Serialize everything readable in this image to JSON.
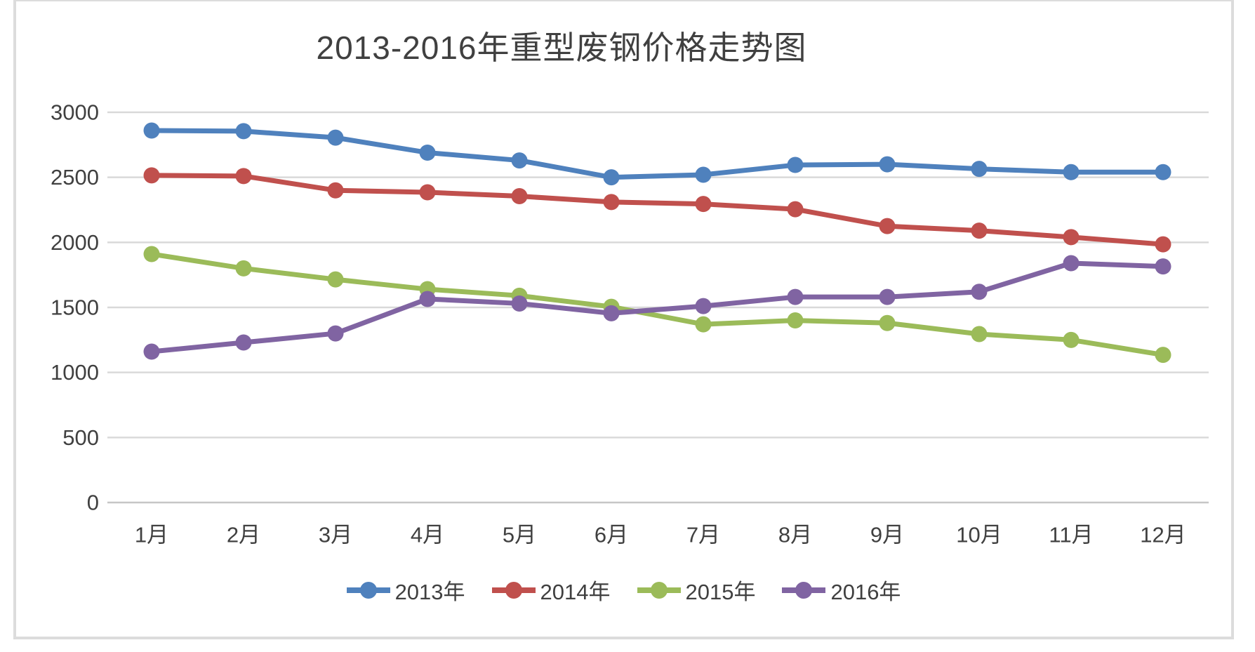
{
  "chart_data": {
    "type": "line",
    "title": "2013-2016年重型废钢价格走势图",
    "xlabel": "",
    "ylabel": "",
    "categories": [
      "1月",
      "2月",
      "3月",
      "4月",
      "5月",
      "6月",
      "7月",
      "8月",
      "9月",
      "10月",
      "11月",
      "12月"
    ],
    "series": [
      {
        "name": "2013年",
        "color": "#4F81BD",
        "values": [
          2860,
          2855,
          2805,
          2690,
          2630,
          2500,
          2520,
          2595,
          2600,
          2565,
          2540,
          2540
        ]
      },
      {
        "name": "2014年",
        "color": "#C0504D",
        "values": [
          2515,
          2510,
          2400,
          2385,
          2355,
          2310,
          2295,
          2255,
          2125,
          2090,
          2040,
          1985
        ]
      },
      {
        "name": "2015年",
        "color": "#9BBB59",
        "values": [
          1910,
          1800,
          1715,
          1640,
          1590,
          1505,
          1370,
          1400,
          1380,
          1295,
          1250,
          1135
        ]
      },
      {
        "name": "2016年",
        "color": "#8064A2",
        "values": [
          1160,
          1230,
          1300,
          1565,
          1530,
          1455,
          1510,
          1580,
          1580,
          1620,
          1840,
          1815
        ]
      }
    ],
    "ylim": [
      0,
      3000
    ],
    "yticks": [
      0,
      500,
      1000,
      1500,
      2000,
      2500,
      3000
    ],
    "grid": "horizontal",
    "legend_position": "bottom",
    "text_color": "#404040",
    "gridline_color": "#D9D9D9",
    "axisline_color": "#C6C6C6",
    "frame_color": "#DCDCDC"
  }
}
